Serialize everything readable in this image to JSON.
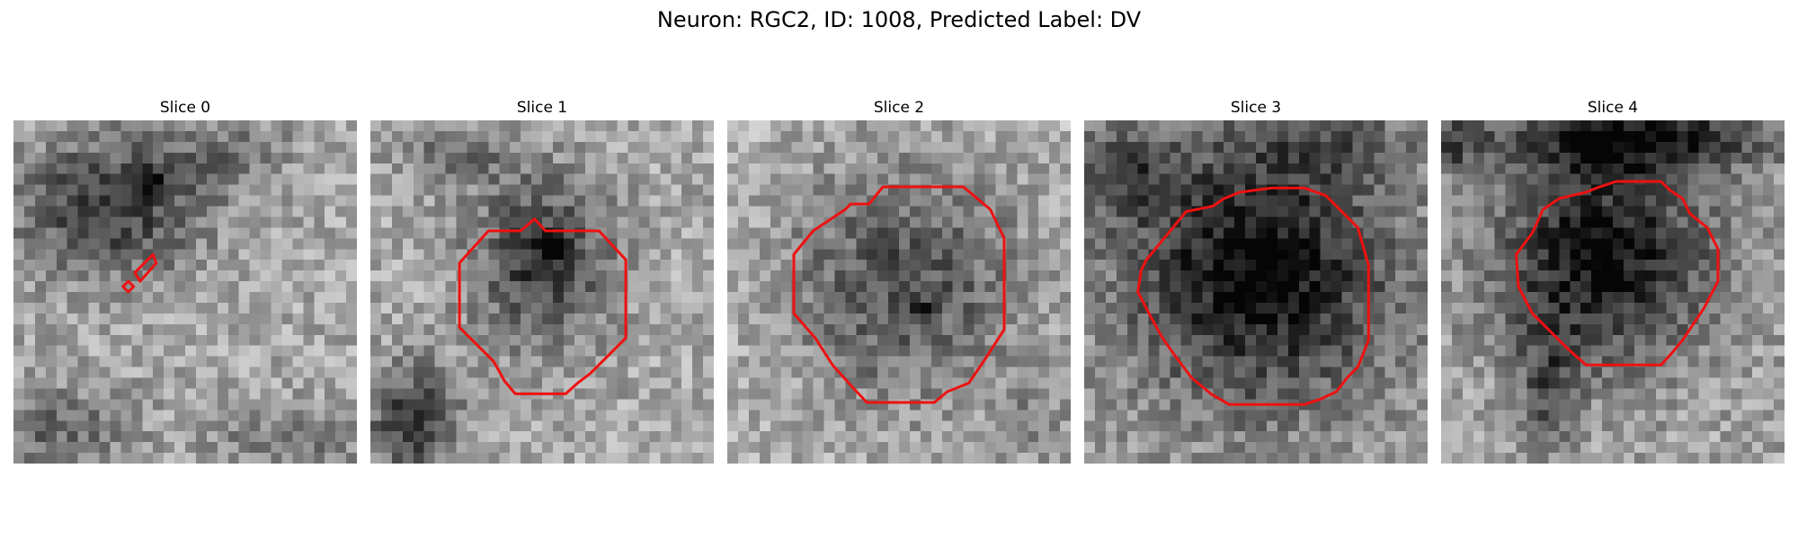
{
  "figure": {
    "title": "Neuron: RGC2, ID: 1008, Predicted Label: DV"
  },
  "colors": {
    "contour": "#ee1111",
    "background": "#ffffff"
  },
  "panels": [
    {
      "title": "Slice 0"
    },
    {
      "title": "Slice 1"
    },
    {
      "title": "Slice 2"
    },
    {
      "title": "Slice 3"
    },
    {
      "title": "Slice 4"
    }
  ]
}
